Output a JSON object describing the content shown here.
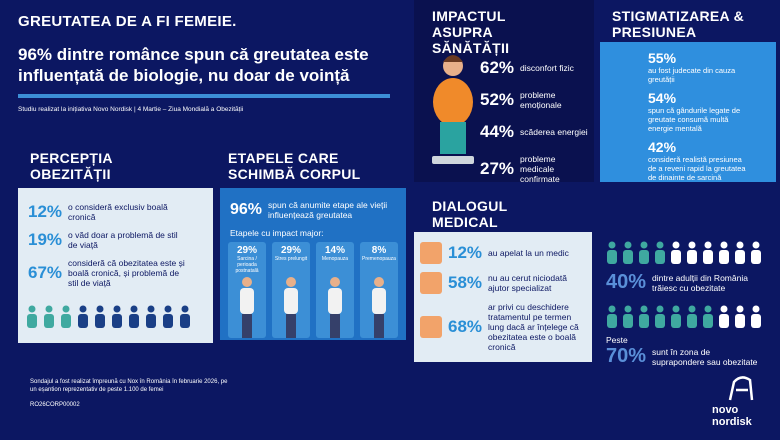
{
  "header": {
    "title": "GREUTATEA DE A FI FEMEIE.",
    "headline": "96% dintre românce spun că greutatea este influențată de biologie, nu doar de voință",
    "source": "Studiu realizat la inițiativa Novo Nordisk | 4 Martie – Ziua Mondială a Obezității"
  },
  "perception": {
    "title": "PERCEPȚIA OBEZITĂȚII",
    "items": [
      {
        "value": "12%",
        "text": "o consideră exclusiv boală cronică"
      },
      {
        "value": "19%",
        "text": "o văd doar a problemă de stil de viață"
      },
      {
        "value": "67%",
        "text": "consideră că obezitatea este și boală cronică, și problemă de stil de viață"
      }
    ]
  },
  "stages": {
    "title": "ETAPELE CARE SCHIMBĂ CORPUL",
    "value": "96%",
    "text": "spun că anumite etape ale vieții influențează greutatea",
    "subtitle": "Etapele cu impact major:",
    "items": [
      {
        "value": "29%",
        "label": "Sarcina / perioada postnatală"
      },
      {
        "value": "29%",
        "label": "Stres prelungit"
      },
      {
        "value": "14%",
        "label": "Menopauza"
      },
      {
        "value": "8%",
        "label": "Premenopauza"
      }
    ]
  },
  "impact": {
    "title": "IMPACTUL ASUPRA SĂNĂTĂȚII",
    "items": [
      {
        "value": "62%",
        "text": "disconfort fizic"
      },
      {
        "value": "52%",
        "text": "probleme emoționale"
      },
      {
        "value": "44%",
        "text": "scăderea energiei"
      },
      {
        "value": "27%",
        "text": "probleme medicale confirmate"
      }
    ]
  },
  "stigma": {
    "title": "STIGMATIZAREA & PRESIUNEA",
    "items": [
      {
        "value": "55%",
        "text": "au fost judecate din cauza greutății"
      },
      {
        "value": "54%",
        "text": "spun că gândurile legate de greutate consumă multă energie mentală"
      },
      {
        "value": "42%",
        "text": "consideră realistă presiunea de a reveni rapid la greutatea de dinainte de sarcină"
      }
    ]
  },
  "dialog": {
    "title": "DIALOGUL MEDICAL",
    "items": [
      {
        "value": "12%",
        "text": "au apelat la un medic"
      },
      {
        "value": "58%",
        "text": "nu au cerut niciodată ajutor specializat"
      },
      {
        "value": "68%",
        "text": "ar privi cu deschidere tratamentul pe termen lung dacă ar înțelege că obezitatea este o boală cronică"
      }
    ]
  },
  "population": {
    "items": [
      {
        "prefix": null,
        "value": "40%",
        "text": "dintre adulții din România trăiesc cu obezitate"
      },
      {
        "prefix": "Peste",
        "value": "70%",
        "text": "sunt în zona de supraponderе sau obezitate"
      }
    ]
  },
  "footer": {
    "note": "Sondajul a fost realizat împreună cu Nox în România în februarie 2026, pe un eșantion reprezentativ de peste 1.100 de femei",
    "code": "RO26CORP00002",
    "brand": "novo nordisk"
  }
}
